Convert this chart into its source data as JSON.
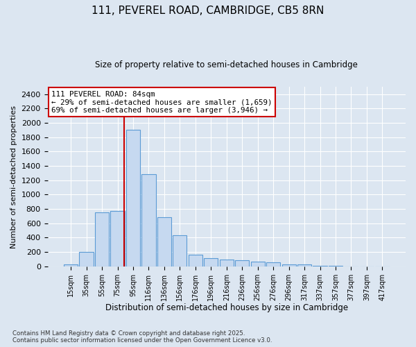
{
  "title1": "111, PEVEREL ROAD, CAMBRIDGE, CB5 8RN",
  "title2": "Size of property relative to semi-detached houses in Cambridge",
  "xlabel": "Distribution of semi-detached houses by size in Cambridge",
  "ylabel": "Number of semi-detached properties",
  "bar_categories": [
    "15sqm",
    "35sqm",
    "55sqm",
    "75sqm",
    "95sqm",
    "116sqm",
    "136sqm",
    "156sqm",
    "176sqm",
    "196sqm",
    "216sqm",
    "236sqm",
    "256sqm",
    "276sqm",
    "296sqm",
    "317sqm",
    "337sqm",
    "357sqm",
    "377sqm",
    "397sqm",
    "417sqm"
  ],
  "bar_values": [
    28,
    200,
    750,
    775,
    1900,
    1280,
    680,
    430,
    160,
    110,
    92,
    88,
    68,
    55,
    28,
    22,
    5,
    3,
    2,
    1,
    1
  ],
  "bar_color": "#c6d9f0",
  "bar_edge_color": "#5b9bd5",
  "bg_color": "#dce6f1",
  "ylim_max": 2500,
  "ytick_step": 200,
  "vline_pos": 3.42,
  "vline_color": "#cc0000",
  "annotation_title": "111 PEVEREL ROAD: 84sqm",
  "annotation_line1": "← 29% of semi-detached houses are smaller (1,659)",
  "annotation_line2": "69% of semi-detached houses are larger (3,946) →",
  "annotation_box_facecolor": "#ffffff",
  "annotation_box_edgecolor": "#cc0000",
  "footnote1": "Contains HM Land Registry data © Crown copyright and database right 2025.",
  "footnote2": "Contains public sector information licensed under the Open Government Licence v3.0."
}
